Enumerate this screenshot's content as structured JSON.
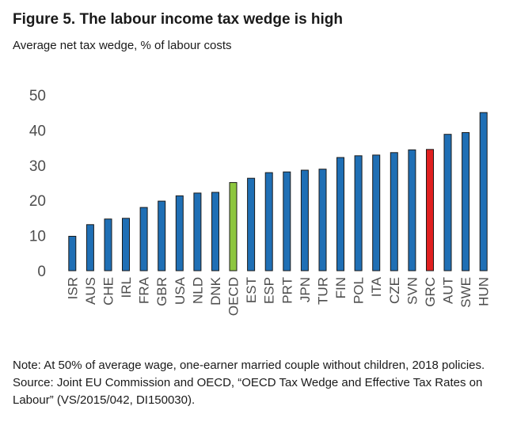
{
  "figure": {
    "title": "Figure 5. The labour income tax wedge is high",
    "subtitle": "Average net tax wedge, % of labour costs"
  },
  "notes": {
    "note": "Note: At 50% of average wage, one-earner married couple without children, 2018 policies.",
    "source": "Source: Joint EU Commission and OECD, “OECD Tax Wedge and Effective Tax Rates on Labour” (VS/2015/042, DI150030)."
  },
  "colors": {
    "default_bar": "#1f6fb5",
    "oecd_bar": "#8dc63f",
    "grc_bar": "#e02020",
    "bar_outline": "#1a1a1a",
    "axis_text": "#4d4d4d"
  },
  "chart_data": {
    "type": "bar",
    "title": "Figure 5. The labour income tax wedge is high",
    "subtitle": "Average net tax wedge, % of labour costs",
    "xlabel": "",
    "ylabel": "",
    "ylim": [
      0,
      50
    ],
    "yticks": [
      0,
      10,
      20,
      30,
      40,
      50
    ],
    "grid": false,
    "legend": "none",
    "categories": [
      "ISR",
      "AUS",
      "CHE",
      "IRL",
      "FRA",
      "GBR",
      "USA",
      "NLD",
      "DNK",
      "OECD",
      "EST",
      "ESP",
      "PRT",
      "JPN",
      "TUR",
      "FIN",
      "POL",
      "ITA",
      "CZE",
      "SVN",
      "GRC",
      "AUT",
      "SWE",
      "HUN"
    ],
    "values": [
      9.8,
      13.1,
      14.7,
      14.9,
      18.0,
      19.8,
      21.3,
      22.1,
      22.3,
      25.1,
      26.3,
      27.9,
      28.1,
      28.6,
      28.9,
      32.2,
      32.7,
      32.9,
      33.6,
      34.4,
      34.5,
      38.8,
      39.3,
      45.0
    ],
    "highlight": {
      "OECD": "oecd_bar",
      "GRC": "grc_bar"
    }
  }
}
